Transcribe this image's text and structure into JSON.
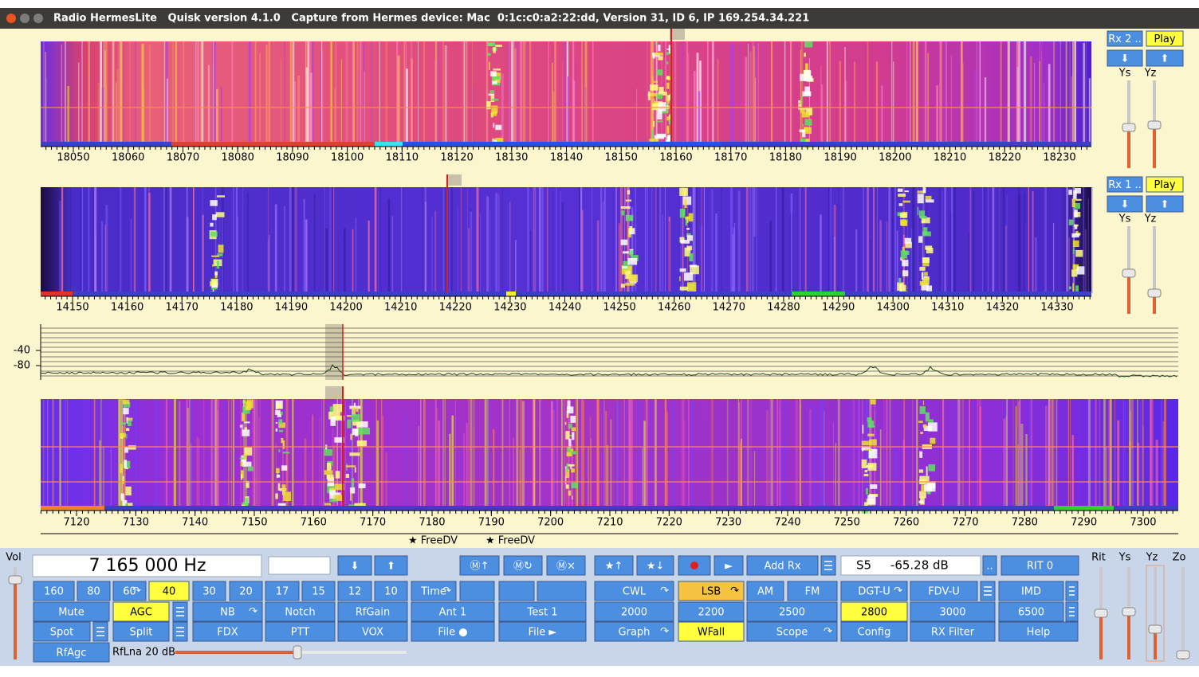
{
  "window": {
    "title": "Radio HermesLite   Quisk version 4.1.0   Capture from Hermes device: Mac  0:1c:c0:a2:22:dd, Version 31, ID 6, IP 169.254.34.221"
  },
  "panels": [
    {
      "rx": "Rx 2 ..",
      "play": "Play",
      "down": "⬇",
      "up": "⬆",
      "ys": "Ys",
      "yz": "Yz",
      "axis": [
        18050,
        18060,
        18070,
        18080,
        18090,
        18100,
        18110,
        18120,
        18130,
        18140,
        18150,
        18160,
        18170,
        18180,
        18190,
        18200,
        18210,
        18220,
        18230
      ]
    },
    {
      "rx": "Rx 1 ..",
      "play": "Play",
      "down": "⬇",
      "up": "⬆",
      "ys": "Ys",
      "yz": "Yz",
      "axis": [
        14150,
        14160,
        14170,
        14180,
        14190,
        14200,
        14210,
        14220,
        14230,
        14240,
        14250,
        14260,
        14270,
        14280,
        14290,
        14300,
        14310,
        14320,
        14330
      ]
    }
  ],
  "graph": {
    "axis": [
      -40,
      -80
    ]
  },
  "main": {
    "axis": [
      7120,
      7130,
      7140,
      7150,
      7160,
      7170,
      7180,
      7190,
      7200,
      7210,
      7220,
      7230,
      7240,
      7250,
      7260,
      7270,
      7280,
      7290,
      7300
    ],
    "markers": [
      "★ FreeDV",
      "★ FreeDV"
    ]
  },
  "controls": {
    "frequency": "7 165 000 Hz",
    "smeter": "S5     -65.28 dB",
    "rflna": "RfLna 20 dB",
    "arrow": "↷",
    "buttons": [
      [
        "⬇",
        "⬆",
        "Ⓜ↑",
        "Ⓜ↻",
        "Ⓜ×",
        "★↑",
        "★↓",
        "►",
        "Add Rx",
        "..",
        "RIT 0"
      ],
      [
        "160",
        "80",
        "60",
        "40",
        "30",
        "20",
        "17",
        "15",
        "12",
        "10",
        "Time",
        "CWL",
        "LSB",
        "AM",
        "FM",
        "DGT-U",
        "FDV-U",
        "IMD"
      ],
      [
        "Mute",
        "AGC",
        "NB",
        "Notch",
        "RfGain",
        "Ant 1",
        "Test 1",
        "2000",
        "2200",
        "2500",
        "2800",
        "3000",
        "6500"
      ],
      [
        "Spot",
        "Split",
        "FDX",
        "PTT",
        "VOX",
        "File ●",
        "File ►",
        "Graph",
        "WFall",
        "Scope",
        "Config",
        "RX Filter",
        "Help"
      ],
      [
        "RfAgc"
      ]
    ],
    "sliders": [
      "Vol",
      "Rit",
      "Ys",
      "Yz",
      "Zo"
    ]
  }
}
